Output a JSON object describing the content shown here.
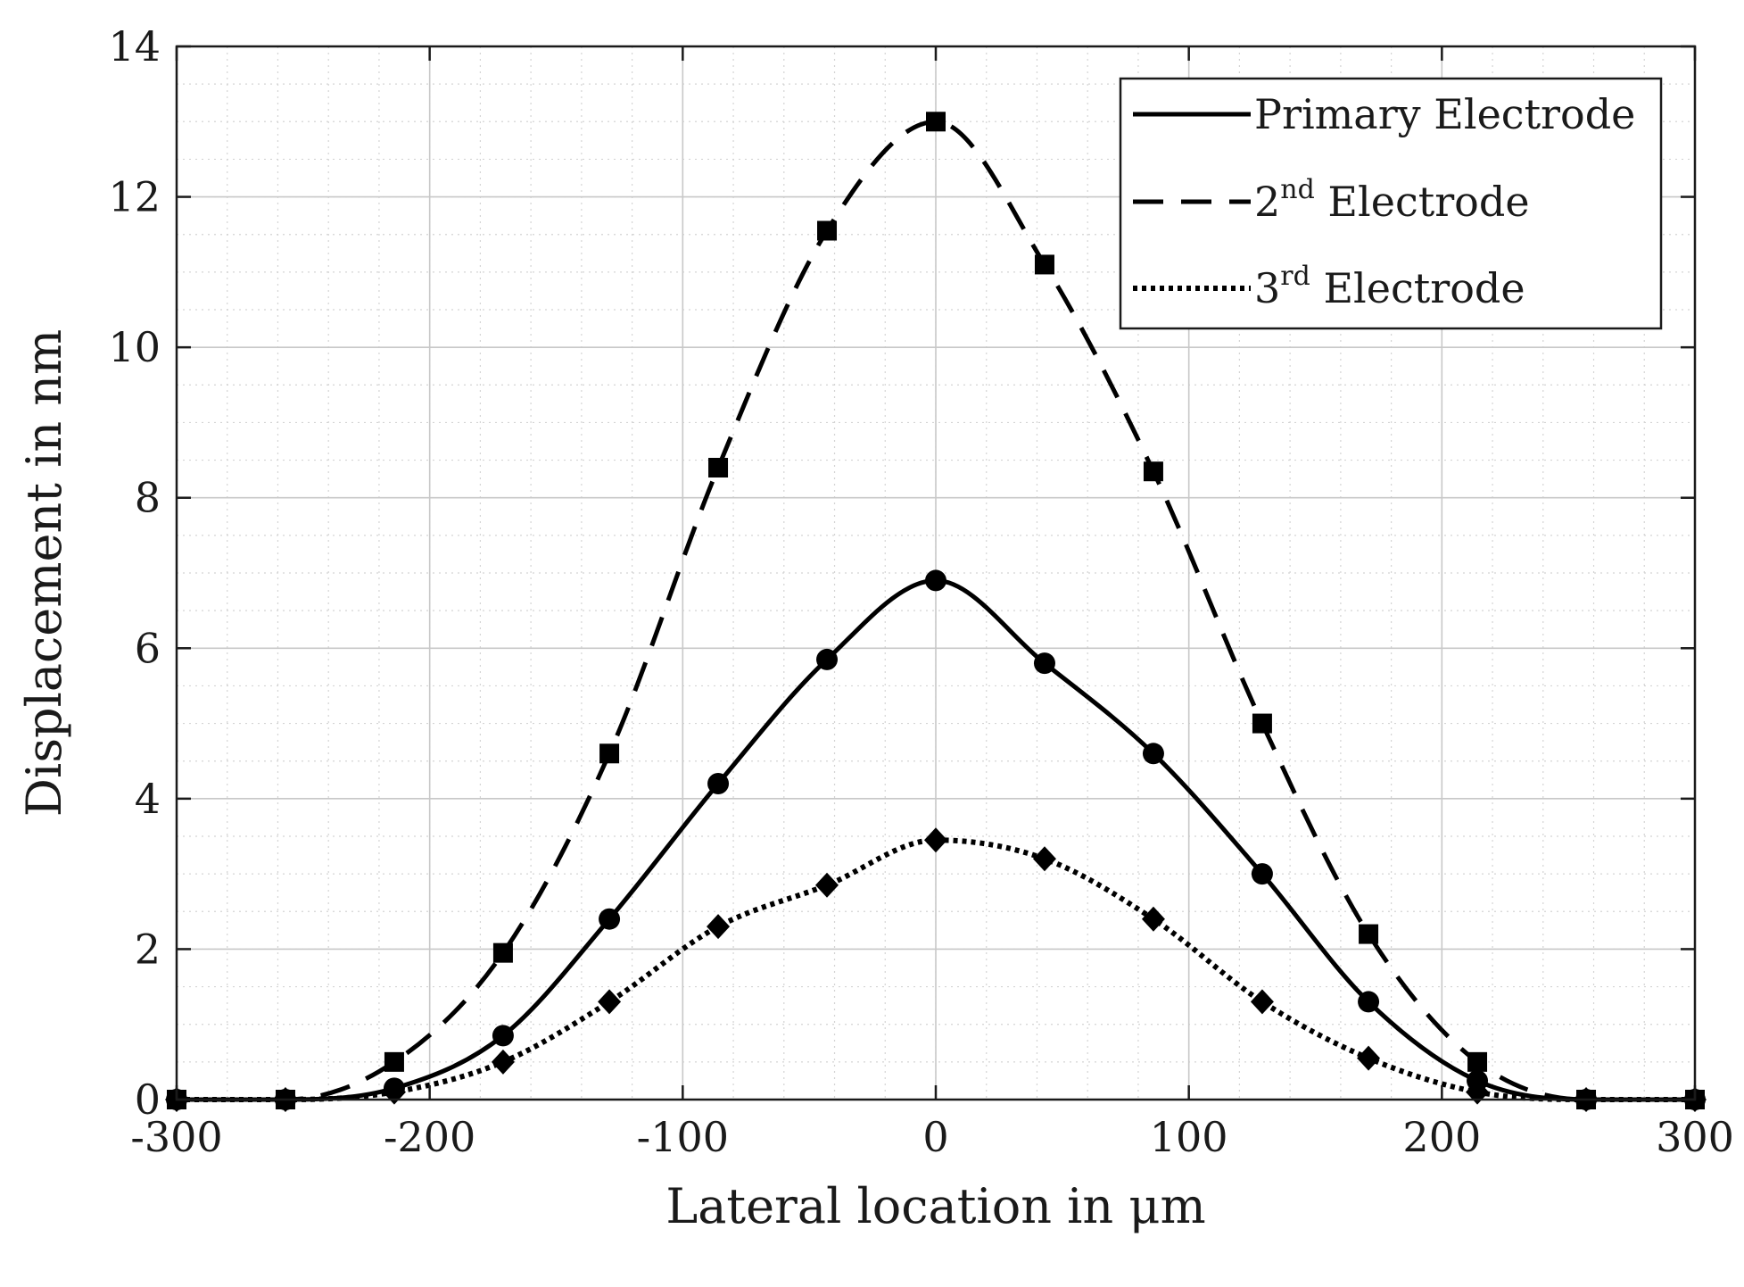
{
  "chart_data": {
    "type": "line",
    "title": "",
    "xlabel": "Lateral location in μm",
    "ylabel": "Displacement in nm",
    "xlim": [
      -300,
      300
    ],
    "ylim": [
      0,
      14
    ],
    "x_ticks": [
      -300,
      -200,
      -100,
      0,
      100,
      200,
      300
    ],
    "x_tick_labels": [
      "-300",
      "-200",
      "-100",
      "0",
      "100",
      "200",
      "300"
    ],
    "y_ticks": [
      0,
      2,
      4,
      6,
      8,
      10,
      12,
      14
    ],
    "y_tick_labels": [
      "0",
      "2",
      "4",
      "6",
      "8",
      "10",
      "12",
      "14"
    ],
    "grid": true,
    "minor_grid": true,
    "legend_position": "top-right",
    "series": [
      {
        "name_main": "Primary Electrode",
        "name_sup": "",
        "name_rest": "",
        "line_style": "solid",
        "marker": "circle",
        "color": "#000000",
        "x": [
          -300,
          -257,
          -214,
          -171,
          -129,
          -86,
          -43,
          0,
          43,
          86,
          129,
          171,
          214,
          257,
          300
        ],
        "y": [
          0.0,
          0.0,
          0.15,
          0.85,
          2.4,
          4.2,
          5.85,
          6.9,
          5.8,
          4.6,
          3.0,
          1.3,
          0.25,
          0.0,
          0.0
        ]
      },
      {
        "name_main": "2",
        "name_sup": "nd",
        "name_rest": " Electrode",
        "line_style": "dashed",
        "marker": "square",
        "color": "#000000",
        "x": [
          -300,
          -257,
          -214,
          -171,
          -129,
          -86,
          -43,
          0,
          43,
          86,
          129,
          171,
          214,
          257,
          300
        ],
        "y": [
          0.0,
          0.0,
          0.5,
          1.95,
          4.6,
          8.4,
          11.55,
          13.0,
          11.1,
          8.35,
          5.0,
          2.2,
          0.5,
          0.0,
          0.0
        ]
      },
      {
        "name_main": "3",
        "name_sup": "rd",
        "name_rest": " Electrode",
        "line_style": "dotted",
        "marker": "diamond",
        "color": "#000000",
        "x": [
          -300,
          -257,
          -214,
          -171,
          -129,
          -86,
          -43,
          0,
          43,
          86,
          129,
          171,
          214,
          257,
          300
        ],
        "y": [
          0.0,
          0.0,
          0.1,
          0.5,
          1.3,
          2.3,
          2.85,
          3.45,
          3.2,
          2.4,
          1.3,
          0.55,
          0.1,
          0.0,
          0.0
        ]
      }
    ]
  }
}
